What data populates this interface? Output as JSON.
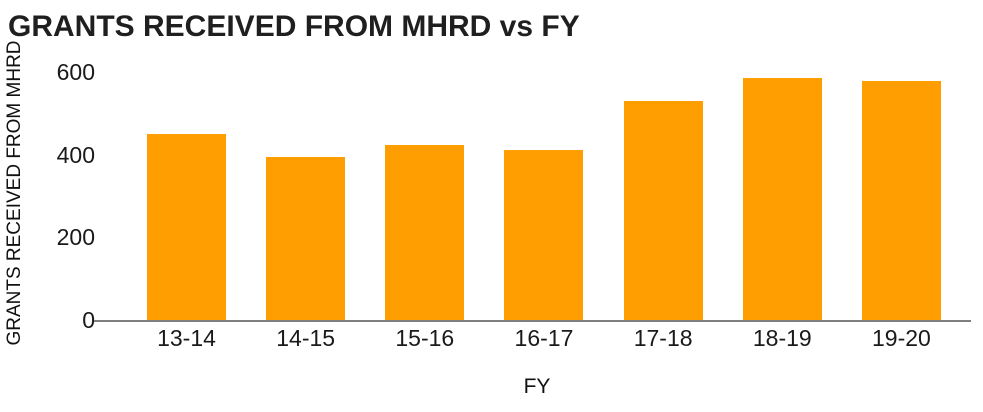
{
  "chart_data": {
    "type": "bar",
    "title": "GRANTS RECEIVED FROM MHRD vs FY",
    "xlabel": "FY",
    "ylabel": "GRANTS RECEIVED FROM MHRD",
    "categories": [
      "13-14",
      "14-15",
      "15-16",
      "16-17",
      "17-18",
      "18-19",
      "19-20"
    ],
    "values": [
      450,
      394,
      424,
      412,
      529,
      585,
      579
    ],
    "ylim": [
      0,
      600
    ],
    "yticks": [
      0,
      200,
      400,
      600
    ],
    "bar_color": "#FF9E00",
    "axis_color": "#7F7F7F",
    "text_color": "#1A1A1A",
    "background": "#FFFFFF",
    "grid": false,
    "legend": false
  }
}
